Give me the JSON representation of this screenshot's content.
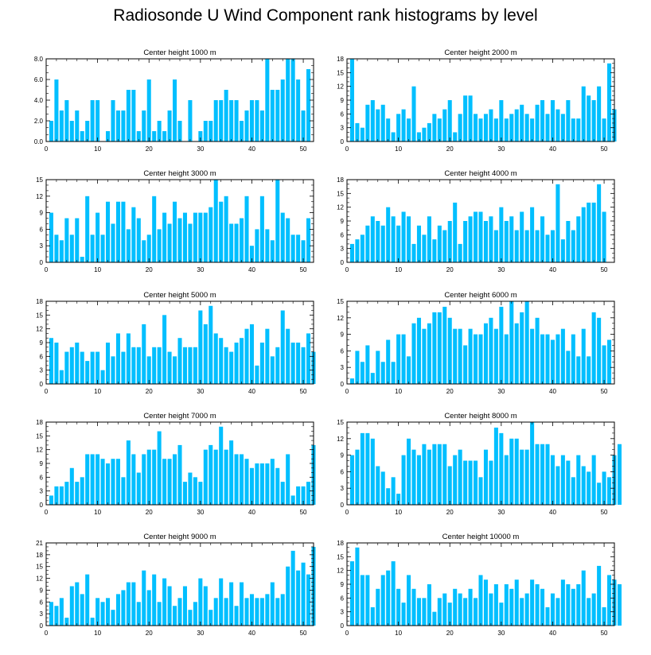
{
  "title": "Radiosonde U Wind Component rank histograms by level",
  "colors": {
    "bar": "#00bfff",
    "axis": "#000000",
    "background": "#ffffff"
  },
  "chart_data": [
    {
      "type": "bar",
      "title": "Center height 1000 m",
      "xlim": [
        0,
        52
      ],
      "ylim": [
        0,
        8
      ],
      "yticks": [
        "0.0",
        "2.0",
        "4.0",
        "6.0",
        "8.0"
      ],
      "ytick_values": [
        0,
        2,
        4,
        6,
        8
      ],
      "xticks": [
        0,
        10,
        20,
        30,
        40,
        50
      ],
      "values": [
        2,
        6,
        3,
        4,
        2,
        3,
        1,
        2,
        4,
        4,
        0,
        1,
        4,
        3,
        3,
        5,
        5,
        1,
        3,
        6,
        1,
        2,
        1,
        3,
        6,
        2,
        0,
        4,
        0,
        1,
        2,
        2,
        4,
        4,
        5,
        4,
        4,
        2,
        3,
        4,
        4,
        3,
        8,
        5,
        5,
        6,
        8,
        8,
        6,
        3,
        7
      ]
    },
    {
      "type": "bar",
      "title": "Center height 2000 m",
      "xlim": [
        0,
        52
      ],
      "ylim": [
        0,
        18
      ],
      "yticks": [
        "0",
        "3",
        "6",
        "9",
        "12",
        "15",
        "18"
      ],
      "ytick_values": [
        0,
        3,
        6,
        9,
        12,
        15,
        18
      ],
      "xticks": [
        0,
        10,
        20,
        30,
        40,
        50
      ],
      "values": [
        18,
        4,
        3,
        8,
        9,
        7,
        8,
        5,
        2,
        6,
        7,
        5,
        12,
        2,
        3,
        4,
        6,
        5,
        7,
        9,
        2,
        6,
        10,
        10,
        6,
        5,
        6,
        7,
        5,
        9,
        5,
        6,
        7,
        8,
        6,
        5,
        8,
        9,
        6,
        9,
        7,
        6,
        9,
        5,
        5,
        12,
        10,
        9,
        12,
        5,
        17,
        7
      ]
    },
    {
      "type": "bar",
      "title": "Center height 3000 m",
      "xlim": [
        0,
        52
      ],
      "ylim": [
        0,
        15
      ],
      "yticks": [
        "0",
        "3",
        "6",
        "9",
        "12",
        "15"
      ],
      "ytick_values": [
        0,
        3,
        6,
        9,
        12,
        15
      ],
      "xticks": [
        0,
        10,
        20,
        30,
        40,
        50
      ],
      "values": [
        9,
        5,
        4,
        8,
        5,
        8,
        1,
        12,
        5,
        9,
        5,
        11,
        7,
        11,
        11,
        6,
        10,
        8,
        4,
        5,
        12,
        6,
        9,
        7,
        11,
        8,
        9,
        7,
        9,
        9,
        9,
        10,
        15,
        11,
        12,
        7,
        7,
        8,
        12,
        3,
        6,
        12,
        6,
        4,
        15,
        9,
        8,
        5,
        5,
        4,
        8
      ]
    },
    {
      "type": "bar",
      "title": "Center height 4000 m",
      "xlim": [
        0,
        52
      ],
      "ylim": [
        0,
        18
      ],
      "yticks": [
        "0",
        "3",
        "6",
        "9",
        "12",
        "15",
        "18"
      ],
      "ytick_values": [
        0,
        3,
        6,
        9,
        12,
        15,
        18
      ],
      "xticks": [
        0,
        10,
        20,
        30,
        40,
        50
      ],
      "values": [
        4,
        5,
        6,
        8,
        10,
        9,
        8,
        12,
        10,
        8,
        11,
        10,
        4,
        8,
        6,
        10,
        5,
        8,
        7,
        9,
        13,
        4,
        9,
        10,
        11,
        11,
        9,
        10,
        7,
        12,
        9,
        10,
        7,
        11,
        7,
        12,
        7,
        10,
        6,
        7,
        17,
        5,
        9,
        7,
        10,
        12,
        13,
        13,
        17,
        11
      ]
    },
    {
      "type": "bar",
      "title": "Center height 5000 m",
      "xlim": [
        0,
        52
      ],
      "ylim": [
        0,
        18
      ],
      "yticks": [
        "0",
        "3",
        "6",
        "9",
        "12",
        "15",
        "18"
      ],
      "ytick_values": [
        0,
        3,
        6,
        9,
        12,
        15,
        18
      ],
      "xticks": [
        0,
        10,
        20,
        30,
        40,
        50
      ],
      "values": [
        10,
        9,
        3,
        7,
        8,
        9,
        7,
        5,
        7,
        7,
        3,
        9,
        6,
        11,
        7,
        11,
        8,
        8,
        13,
        6,
        8,
        8,
        15,
        7,
        6,
        10,
        8,
        8,
        8,
        16,
        13,
        17,
        11,
        10,
        8,
        7,
        9,
        10,
        12,
        13,
        4,
        9,
        12,
        6,
        8,
        16,
        12,
        9,
        9,
        8,
        11,
        7
      ]
    },
    {
      "type": "bar",
      "title": "Center height 6000 m",
      "xlim": [
        0,
        52
      ],
      "ylim": [
        0,
        15
      ],
      "yticks": [
        "0",
        "3",
        "6",
        "9",
        "12",
        "15"
      ],
      "ytick_values": [
        0,
        3,
        6,
        9,
        12,
        15
      ],
      "xticks": [
        0,
        10,
        20,
        30,
        40,
        50
      ],
      "values": [
        1,
        6,
        4,
        7,
        2,
        6,
        4,
        8,
        4,
        9,
        9,
        5,
        11,
        12,
        10,
        11,
        13,
        13,
        14,
        12,
        10,
        10,
        7,
        10,
        9,
        9,
        11,
        12,
        10,
        14,
        9,
        15,
        11,
        13,
        15,
        10,
        12,
        9,
        9,
        8,
        9,
        10,
        6,
        9,
        5,
        10,
        5,
        13,
        12,
        7,
        8
      ]
    },
    {
      "type": "bar",
      "title": "Center height 7000 m",
      "xlim": [
        0,
        52
      ],
      "ylim": [
        0,
        18
      ],
      "yticks": [
        "0",
        "3",
        "6",
        "9",
        "12",
        "15",
        "18"
      ],
      "ytick_values": [
        0,
        3,
        6,
        9,
        12,
        15,
        18
      ],
      "xticks": [
        0,
        10,
        20,
        30,
        40,
        50
      ],
      "values": [
        2,
        4,
        4,
        5,
        8,
        5,
        6,
        11,
        11,
        11,
        10,
        9,
        10,
        10,
        6,
        14,
        11,
        7,
        11,
        12,
        12,
        16,
        10,
        10,
        11,
        13,
        5,
        7,
        6,
        5,
        12,
        13,
        12,
        17,
        12,
        14,
        11,
        11,
        10,
        8,
        9,
        9,
        9,
        10,
        8,
        5,
        11,
        2,
        4,
        4,
        5,
        13
      ]
    },
    {
      "type": "bar",
      "title": "Center height 8000 m",
      "xlim": [
        0,
        52
      ],
      "ylim": [
        0,
        15
      ],
      "yticks": [
        "0",
        "3",
        "6",
        "9",
        "12",
        "15"
      ],
      "ytick_values": [
        0,
        3,
        6,
        9,
        12,
        15
      ],
      "xticks": [
        0,
        10,
        20,
        30,
        40,
        50
      ],
      "values": [
        9,
        10,
        13,
        13,
        12,
        7,
        6,
        3,
        5,
        2,
        9,
        12,
        10,
        9,
        11,
        10,
        11,
        11,
        11,
        7,
        9,
        10,
        8,
        8,
        8,
        5,
        10,
        8,
        14,
        13,
        9,
        12,
        12,
        10,
        10,
        15,
        11,
        11,
        11,
        9,
        7,
        9,
        8,
        5,
        9,
        7,
        6,
        9,
        4,
        6,
        5,
        9,
        11
      ]
    },
    {
      "type": "bar",
      "title": "Center height 9000 m",
      "xlim": [
        0,
        52
      ],
      "ylim": [
        0,
        21
      ],
      "yticks": [
        "0",
        "3",
        "6",
        "9",
        "12",
        "15",
        "18",
        "21"
      ],
      "ytick_values": [
        0,
        3,
        6,
        9,
        12,
        15,
        18,
        21
      ],
      "xticks": [
        0,
        10,
        20,
        30,
        40,
        50
      ],
      "values": [
        6,
        5,
        7,
        2,
        10,
        11,
        8,
        13,
        2,
        7,
        6,
        7,
        4,
        8,
        9,
        11,
        11,
        6,
        14,
        9,
        13,
        6,
        12,
        10,
        5,
        7,
        10,
        4,
        6,
        12,
        10,
        4,
        7,
        12,
        7,
        11,
        5,
        11,
        7,
        8,
        7,
        7,
        8,
        11,
        7,
        8,
        15,
        19,
        14,
        16,
        13,
        20
      ]
    },
    {
      "type": "bar",
      "title": "Center height 10000 m",
      "xlim": [
        0,
        52
      ],
      "ylim": [
        0,
        18
      ],
      "yticks": [
        "0",
        "3",
        "6",
        "9",
        "12",
        "15",
        "18"
      ],
      "ytick_values": [
        0,
        3,
        6,
        9,
        12,
        15,
        18
      ],
      "xticks": [
        0,
        10,
        20,
        30,
        40,
        50
      ],
      "values": [
        14,
        17,
        11,
        11,
        4,
        8,
        11,
        12,
        14,
        8,
        5,
        11,
        8,
        6,
        6,
        9,
        3,
        6,
        7,
        5,
        8,
        7,
        6,
        8,
        6,
        11,
        10,
        7,
        9,
        5,
        9,
        8,
        10,
        6,
        7,
        10,
        9,
        8,
        4,
        7,
        6,
        10,
        9,
        8,
        9,
        12,
        6,
        7,
        13,
        4,
        11,
        10,
        9
      ]
    }
  ]
}
